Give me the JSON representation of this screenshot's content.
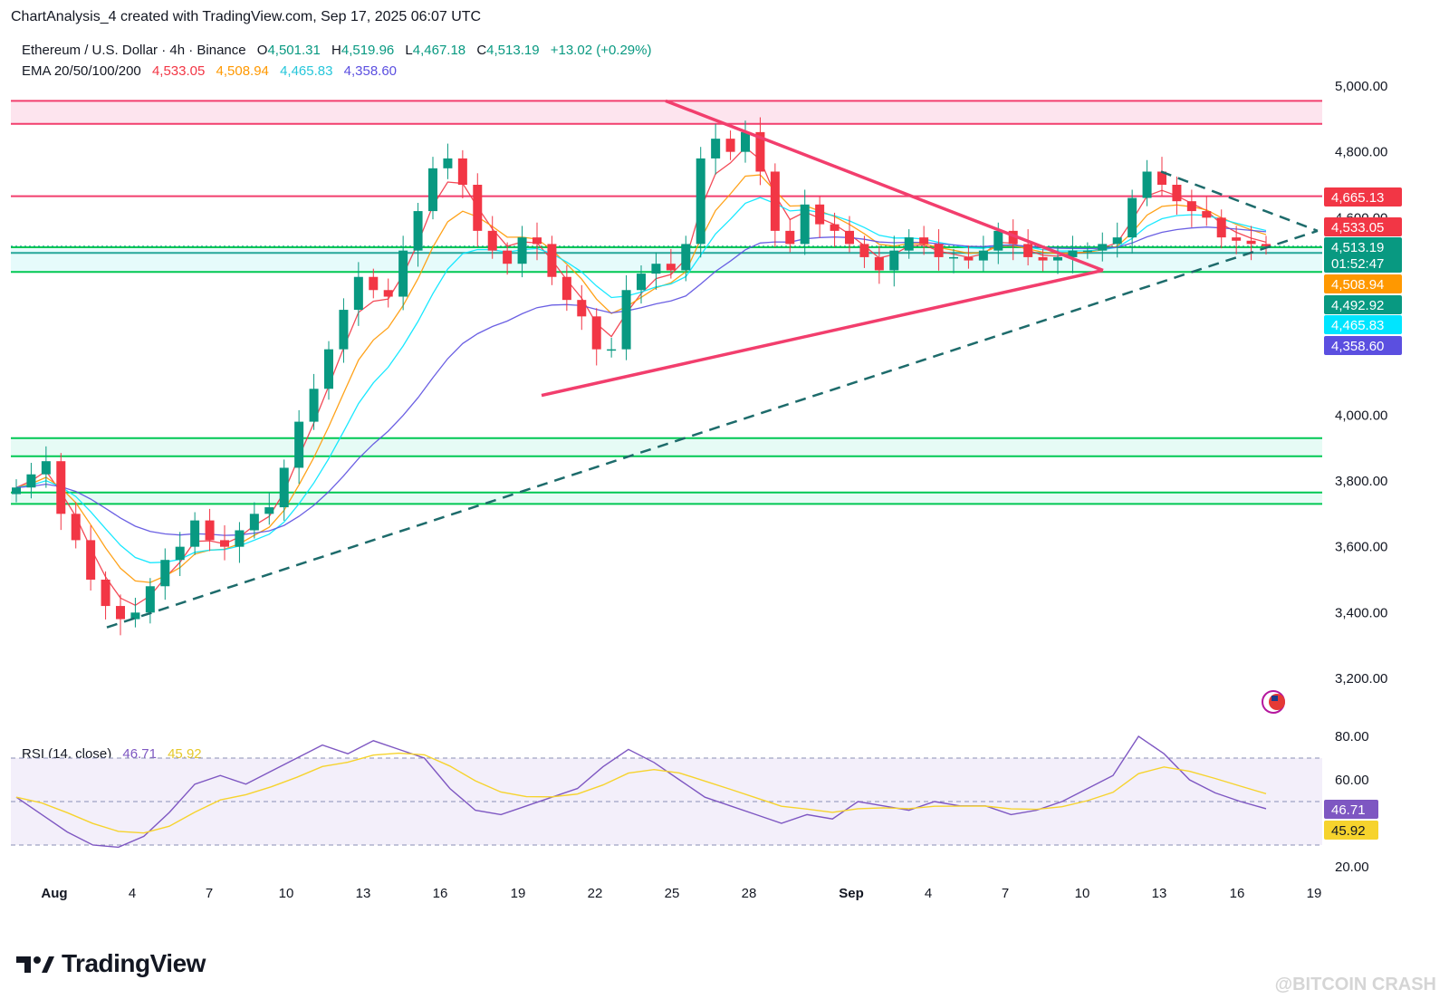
{
  "header": {
    "credit": "ChartAnalysis_4 created with TradingView.com, Sep 17, 2025 06:07 UTC",
    "symbol": "Ethereum / U.S. Dollar · 4h · Binance",
    "ohlc": {
      "o_label": "O",
      "o": "4,501.31",
      "h_label": "H",
      "h": "4,519.96",
      "l_label": "L",
      "l": "4,467.18",
      "c_label": "C",
      "c": "4,513.19",
      "change": "+13.02 (+0.29%)"
    },
    "ema_label": "EMA 20/50/100/200",
    "ema_values": [
      "4,533.05",
      "4,508.94",
      "4,465.83",
      "4,358.60"
    ],
    "rsi_label": "RSI (14, close)",
    "rsi_values": [
      "46.71",
      "45.92"
    ]
  },
  "colors": {
    "up": "#089981",
    "down": "#f23645",
    "ema20": "#f23645",
    "ema50": "#ff9800",
    "ema100": "#00e5ff",
    "ema200": "#5b4fe0",
    "resistance": "#f23e6d",
    "support": "#00c853",
    "rsi": "#7e57c2",
    "rsi_ma": "#f6d32d",
    "trend_dash": "#1d6b6b"
  },
  "chart_data": [
    {
      "type": "candlestick",
      "title": "Ethereum / U.S. Dollar · 4h · Binance",
      "y_axis_ticks": [
        "5,000.00",
        "4,800.00",
        "4,600.00",
        "4,000.00",
        "3,800.00",
        "3,600.00",
        "3,400.00",
        "3,200.00"
      ],
      "ylim": [
        3100,
        5040
      ],
      "x_ticks": [
        "Aug",
        "4",
        "7",
        "10",
        "13",
        "16",
        "19",
        "22",
        "25",
        "28",
        "Sep",
        "4",
        "7",
        "10",
        "13",
        "16",
        "19"
      ],
      "price_tags": [
        {
          "value": "4,665.13",
          "color": "#f23645"
        },
        {
          "value": "4,533.05",
          "color": "#f23645"
        },
        {
          "value": "4,513.19",
          "color": "#089981"
        },
        {
          "value": "01:52:47",
          "color": "#089981"
        },
        {
          "value": "4,508.94",
          "color": "#ff9800"
        },
        {
          "value": "4,492.92",
          "color": "#089981"
        },
        {
          "value": "4,465.83",
          "color": "#00e5ff"
        },
        {
          "value": "4,358.60",
          "color": "#5b4fe0"
        }
      ],
      "resistance_zone": [
        4885,
        4955
      ],
      "resistance_line": 4665.13,
      "support_zone": [
        4435,
        4510
      ],
      "support_zone_2": [
        3875,
        3930
      ],
      "support_zone_3": [
        3730,
        3765
      ],
      "last_close": 4513.19,
      "series": [
        {
          "name": "EMA 20",
          "value": 4533.05
        },
        {
          "name": "EMA 50",
          "value": 4508.94
        },
        {
          "name": "EMA 100",
          "value": 4465.83
        },
        {
          "name": "EMA 200",
          "value": 4358.6
        }
      ],
      "closes": [
        3780,
        3820,
        3860,
        3700,
        3620,
        3500,
        3420,
        3380,
        3400,
        3480,
        3560,
        3600,
        3680,
        3620,
        3600,
        3650,
        3700,
        3720,
        3840,
        3980,
        4080,
        4200,
        4320,
        4420,
        4380,
        4360,
        4500,
        4620,
        4750,
        4780,
        4700,
        4560,
        4500,
        4460,
        4540,
        4520,
        4420,
        4350,
        4300,
        4200,
        4200,
        4380,
        4430,
        4460,
        4440,
        4520,
        4780,
        4840,
        4800,
        4860,
        4740,
        4560,
        4520,
        4640,
        4580,
        4560,
        4520,
        4480,
        4440,
        4500,
        4540,
        4520,
        4480,
        4480,
        4470,
        4500,
        4560,
        4520,
        4480,
        4470,
        4480,
        4500,
        4500,
        4520,
        4540,
        4660,
        4740,
        4700,
        4650,
        4620,
        4600,
        4540,
        4530,
        4520,
        4513.19
      ],
      "rsi": [
        52,
        44,
        36,
        30,
        29,
        34,
        45,
        58,
        62,
        58,
        64,
        70,
        76,
        72,
        78,
        74,
        70,
        56,
        46,
        44,
        48,
        52,
        56,
        66,
        74,
        68,
        60,
        52,
        48,
        44,
        40,
        44,
        42,
        50,
        48,
        46,
        50,
        48,
        48,
        44,
        46,
        50,
        56,
        62,
        80,
        72,
        60,
        54,
        50,
        46.71
      ],
      "rsi_ma_value": 45.92,
      "rsi_ticks": [
        "80.00",
        "60.00",
        "20.00"
      ],
      "rsi_price_tags": [
        {
          "value": "46.71",
          "color": "#7e57c2"
        },
        {
          "value": "45.92",
          "color": "#f6d32d"
        }
      ]
    }
  ],
  "footer": {
    "brand": "TradingView",
    "watermark": "@BITCOIN CRASH"
  }
}
